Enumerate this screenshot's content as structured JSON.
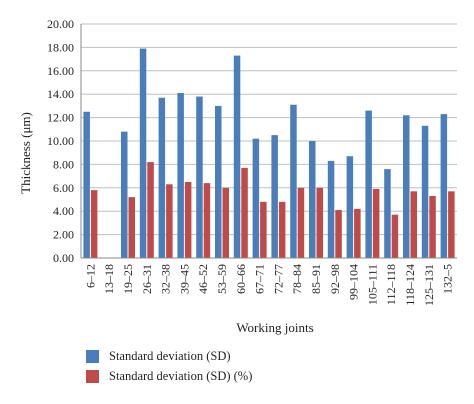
{
  "chart_data": {
    "type": "bar",
    "xlabel": "Working joints",
    "ylabel": "Thickness (μm)",
    "ylim": [
      0,
      20
    ],
    "yticks": [
      "0.00",
      "2.00",
      "4.00",
      "6.00",
      "8.00",
      "10.00",
      "12.00",
      "14.00",
      "16.00",
      "18.00",
      "20.00"
    ],
    "grid": true,
    "legend_position": "bottom-left",
    "categories": [
      "6–12",
      "13–18",
      "19–25",
      "26–31",
      "32–38",
      "39–45",
      "46–52",
      "53–59",
      "60–66",
      "67–71",
      "72–77",
      "78–84",
      "85–91",
      "92–98",
      "99–104",
      "105–111",
      "112–118",
      "118–124",
      "125–131",
      "132–5"
    ],
    "series": [
      {
        "name": "Standard deviation (SD)",
        "color": "#4a7ebb",
        "values": [
          12.5,
          null,
          10.8,
          17.9,
          13.7,
          14.1,
          13.8,
          13.0,
          17.3,
          10.2,
          10.5,
          13.1,
          10.0,
          8.3,
          8.7,
          12.6,
          7.6,
          12.2,
          11.3,
          12.3
        ]
      },
      {
        "name": "Standard deviation (SD) (%)",
        "color": "#be4b48",
        "values": [
          5.8,
          null,
          5.2,
          8.2,
          6.3,
          6.5,
          6.4,
          6.0,
          7.7,
          4.8,
          4.8,
          6.0,
          6.0,
          4.1,
          4.2,
          5.9,
          3.7,
          5.7,
          5.3,
          5.7
        ]
      }
    ]
  }
}
